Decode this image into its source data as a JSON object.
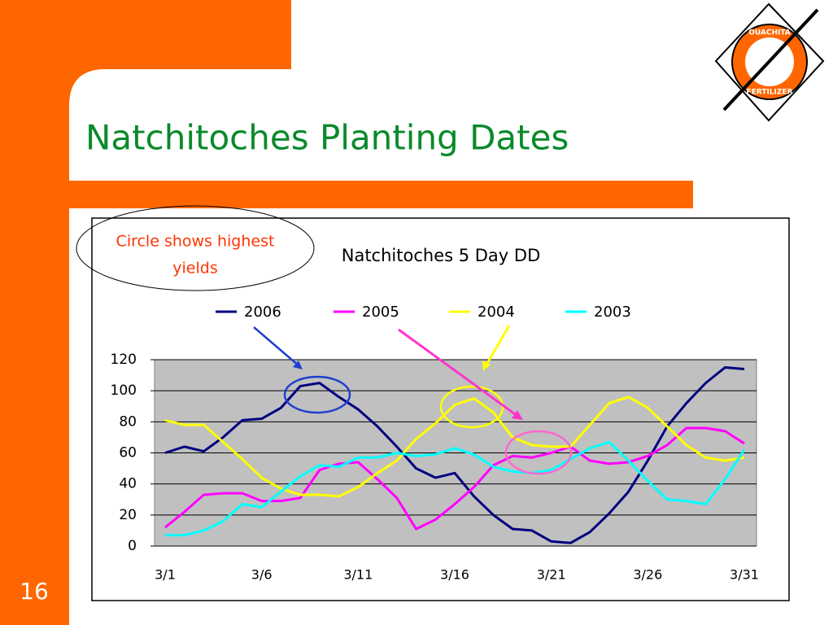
{
  "slide": {
    "title": "Natchitoches Planting Dates",
    "number": "16",
    "annotation": [
      "Circle shows highest",
      "yields"
    ],
    "logo": [
      "OUACHITA",
      "FERTILIZER"
    ]
  },
  "chart_data": {
    "type": "line",
    "title": "Natchitoches 5 Day DD",
    "categories": [
      "3/1",
      null,
      null,
      null,
      null,
      "3/6",
      null,
      null,
      null,
      null,
      "3/11",
      null,
      null,
      null,
      null,
      "3/16",
      null,
      null,
      null,
      null,
      "3/21",
      null,
      null,
      null,
      null,
      "3/26",
      null,
      null,
      null,
      null,
      "3/31"
    ],
    "series": [
      {
        "name": "2006",
        "color": "#000080",
        "values": [
          60,
          64,
          61,
          70,
          81,
          82,
          89,
          103,
          105,
          96,
          88,
          77,
          64,
          50,
          44,
          47,
          32,
          20,
          11,
          10,
          3,
          2,
          9,
          21,
          35,
          55,
          77,
          92,
          105,
          115,
          114
        ]
      },
      {
        "name": "2005",
        "color": "#ff00ff",
        "values": [
          12,
          22,
          33,
          34,
          34,
          29,
          29,
          31,
          49,
          53,
          54,
          43,
          31,
          11,
          17,
          27,
          38,
          52,
          58,
          57,
          60,
          64,
          55,
          53,
          54,
          58,
          65,
          76,
          76,
          74,
          66
        ]
      },
      {
        "name": "2004",
        "color": "#ffff00",
        "values": [
          81,
          78,
          78,
          67,
          56,
          44,
          37,
          33,
          33,
          32,
          38,
          47,
          55,
          69,
          79,
          91,
          95,
          86,
          70,
          65,
          64,
          64,
          78,
          92,
          96,
          89,
          77,
          65,
          57,
          55,
          57
        ]
      },
      {
        "name": "2003",
        "color": "#00ffff",
        "values": [
          7,
          7,
          10,
          16,
          27,
          25,
          35,
          45,
          52,
          51,
          57,
          57,
          60,
          58,
          59,
          63,
          59,
          51,
          48,
          47,
          49,
          56,
          63,
          67,
          55,
          42,
          30,
          29,
          27,
          43,
          62
        ]
      }
    ],
    "ylim": [
      0,
      120
    ],
    "yticks": [
      0,
      20,
      40,
      60,
      80,
      100,
      120
    ],
    "grid": true,
    "legend": "top"
  }
}
